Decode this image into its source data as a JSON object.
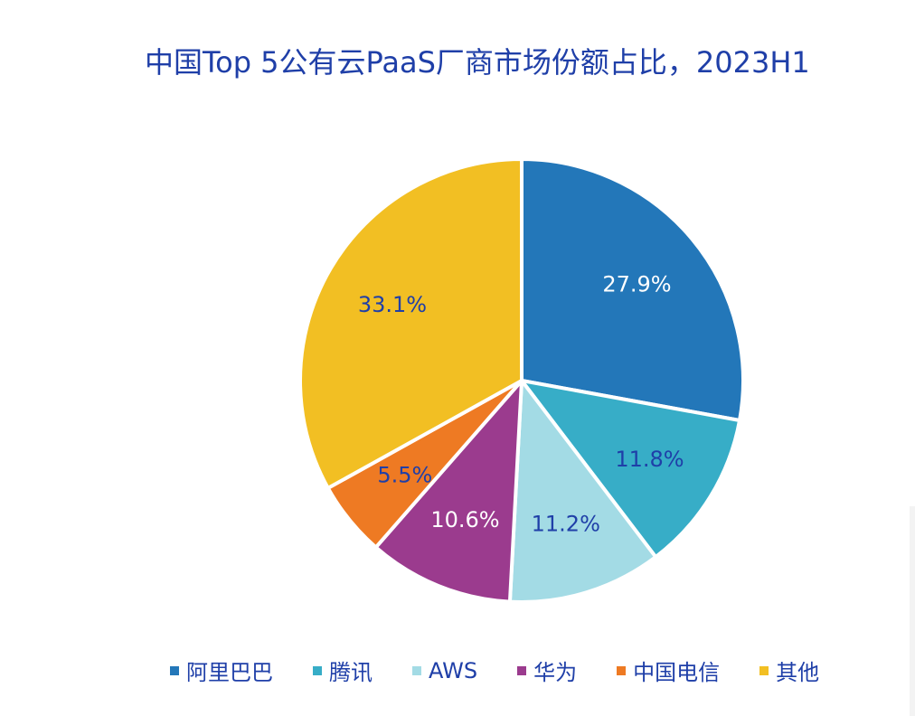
{
  "chart_data": {
    "type": "pie",
    "title": "中国Top 5公有云PaaS厂商市场份额占比，2023H1",
    "categories": [
      "阿里巴巴",
      "腾讯",
      "AWS",
      "华为",
      "中国电信",
      "其他"
    ],
    "values": [
      27.9,
      11.8,
      11.2,
      10.6,
      5.5,
      33.1
    ],
    "value_labels": [
      "27.9%",
      "11.8%",
      "11.2%",
      "10.6%",
      "5.5%",
      "33.1%"
    ],
    "colors": [
      "#2377b9",
      "#37adc7",
      "#a3dbe5",
      "#9b3b8e",
      "#ee7a23",
      "#f2bf23"
    ],
    "label_colors": [
      "#ffffff",
      "#1f3fa8",
      "#1f3fa8",
      "#ffffff",
      "#1f3fa8",
      "#1f3fa8"
    ],
    "legend_position": "bottom",
    "legend_labels": [
      "阿里巴巴",
      "腾讯",
      "AWS",
      "华为",
      "中国电信",
      "其他"
    ]
  }
}
